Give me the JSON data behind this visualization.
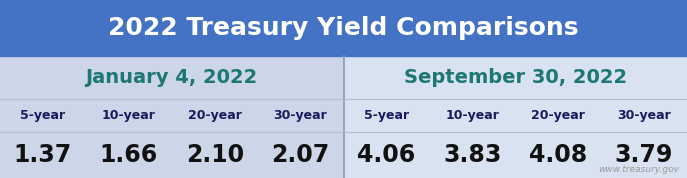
{
  "title": "2022 Treasury Yield Comparisons",
  "title_bg": "#4472c4",
  "title_color": "#ffffff",
  "section1_label": "January 4, 2022",
  "section2_label": "September 30, 2022",
  "section_label_color": "#1d7874",
  "col_headers": [
    "5-year",
    "10-year",
    "20-year",
    "30-year",
    "5-year",
    "10-year",
    "20-year",
    "30-year"
  ],
  "col_header_color": "#1a1a5e",
  "values": [
    "1.37",
    "1.66",
    "2.10",
    "2.07",
    "4.06",
    "3.83",
    "4.08",
    "3.79"
  ],
  "value_color": "#111111",
  "bg_left": "#cdd6e8",
  "bg_right": "#d8e2f0",
  "table_bg": "#cdd6e8",
  "divider_color": "#8899bb",
  "row_divider_color": "#b0bed4",
  "watermark": "www.treasury.gov",
  "watermark_color": "#999999",
  "title_fontsize": 18,
  "section_fontsize": 14,
  "header_fontsize": 9,
  "value_fontsize": 17
}
